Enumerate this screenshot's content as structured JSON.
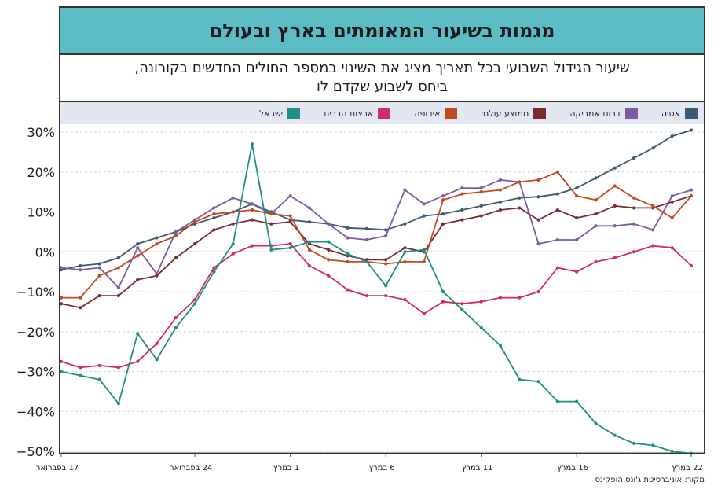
{
  "header": {
    "title": "מגמות בשיעור המאומתים בארץ ובעולם",
    "subtitle_line1": "שיעור הגידול השבועי בכל תאריך מציג את השינוי במספר החולים החדשים בקורונה,",
    "subtitle_line2": "ביחס לשבוע שקדם לו"
  },
  "source": "מקור: אוניברסיטת ג'ונס הופקינס",
  "chart_data": {
    "type": "line",
    "ylim": [
      -50,
      30
    ],
    "yticks": [
      30,
      20,
      10,
      0,
      -10,
      -20,
      -30,
      -40,
      -50
    ],
    "ytick_labels": [
      "30%",
      "20%",
      "10%",
      "0%",
      "−10%",
      "−20%",
      "−30%",
      "−40%",
      "−50%"
    ],
    "xlabels": [
      "17 בפברואר",
      "24 בפברואר",
      "1 במרץ",
      "6 במרץ",
      "11 במרץ",
      "16 במרץ",
      "22 במרץ"
    ],
    "xlabel_days": [
      0,
      7,
      12,
      17,
      22,
      27,
      33
    ],
    "legend_position": "top",
    "series": [
      {
        "name": "אסיה",
        "color": "#3d5a73",
        "values": [
          -4.5,
          -3.5,
          -3,
          -1.5,
          2,
          3.5,
          5,
          7,
          8.5,
          10,
          12,
          10,
          8,
          7.5,
          7,
          6,
          5.8,
          5.5,
          7,
          9,
          9.5,
          10.5,
          11.5,
          12.5,
          13.5,
          13.8,
          14.5,
          16,
          18.5,
          21,
          23.5,
          26,
          29,
          30.5
        ]
      },
      {
        "name": "דרום אמריקה",
        "color": "#7e5aa6",
        "values": [
          -4,
          -4.5,
          -4,
          -9,
          1,
          -5.5,
          5,
          8,
          11,
          13.5,
          12,
          9.5,
          14,
          11,
          7,
          3.5,
          3,
          4,
          15.5,
          12,
          14,
          16,
          16,
          18,
          17.5,
          2,
          3,
          3,
          6.5,
          6.5,
          7,
          5.5,
          14,
          15.5
        ]
      },
      {
        "name": "ממוצע עולמי",
        "color": "#7a2a30",
        "values": [
          -13,
          -14,
          -11,
          -11,
          -7,
          -6,
          -1.5,
          2,
          5.5,
          7,
          8,
          7,
          7.5,
          2,
          0.5,
          -1,
          -2,
          -2,
          1,
          0,
          7,
          8,
          9,
          10.5,
          11,
          8,
          10.5,
          8.5,
          9.5,
          11.5,
          11,
          11,
          12.5,
          14
        ]
      },
      {
        "name": "אירופה",
        "color": "#c04a20",
        "values": [
          -11.5,
          -11.5,
          -6,
          -4,
          -1,
          2,
          4,
          7.5,
          9.5,
          10,
          10.5,
          9.5,
          9,
          0.5,
          -2,
          -2.5,
          -2.5,
          -3,
          -2.5,
          -2.5,
          13,
          14.5,
          15,
          15.5,
          17.5,
          18,
          20,
          14,
          13,
          16.5,
          13.5,
          11.5,
          8.5,
          14
        ]
      },
      {
        "name": "ארצות הברית",
        "color": "#d12a6a",
        "values": [
          -27.5,
          -29,
          -28.5,
          -29,
          -27.5,
          -23,
          -16.5,
          -12,
          -4,
          -0.5,
          1.5,
          1.5,
          2,
          -3.5,
          -6,
          -9.5,
          -11,
          -11,
          -12,
          -15.5,
          -12.5,
          -13,
          -12.5,
          -11.5,
          -11.5,
          -10,
          -4,
          -5,
          -2.5,
          -1.5,
          0,
          1.5,
          1,
          -3.5
        ]
      },
      {
        "name": "ישראל",
        "color": "#1e8f82",
        "values": [
          -30,
          -31,
          -32,
          -38,
          -20.5,
          -27,
          -19,
          -13,
          -5,
          2,
          27,
          0.5,
          1,
          2.5,
          2.5,
          -0.5,
          -2.5,
          -8.5,
          0,
          0.5,
          -10,
          -14.5,
          -19,
          -23.5,
          -32,
          -32.5,
          -37.5,
          -37.5,
          -43,
          -46,
          -48,
          -48.5,
          -50,
          -50.5
        ]
      }
    ]
  }
}
